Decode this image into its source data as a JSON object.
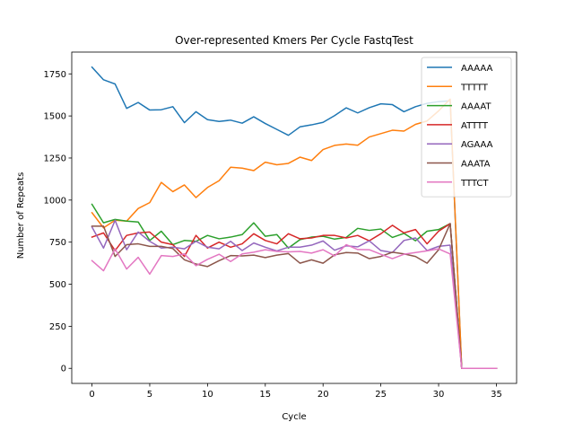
{
  "chart_data": {
    "type": "line",
    "title": "Over-represented Kmers Per Cycle FastqTest",
    "xlabel": "Cycle",
    "ylabel": "Number of Repeats",
    "xlim": [
      -1.75,
      36.75
    ],
    "ylim": [
      -89.5,
      1879.5
    ],
    "xticks": [
      0,
      5,
      10,
      15,
      20,
      25,
      30,
      35
    ],
    "yticks": [
      0,
      250,
      500,
      750,
      1000,
      1250,
      1500,
      1750
    ],
    "legend_position": "top-right",
    "grid": false,
    "x": [
      0,
      1,
      2,
      3,
      4,
      5,
      6,
      7,
      8,
      9,
      10,
      11,
      12,
      13,
      14,
      15,
      16,
      17,
      18,
      19,
      20,
      21,
      22,
      23,
      24,
      25,
      26,
      27,
      28,
      29,
      30,
      31,
      32,
      33,
      34,
      35
    ],
    "series": [
      {
        "name": "AAAAA",
        "color": "#1f77b4",
        "values": [
          1790,
          1715,
          1690,
          1545,
          1580,
          1535,
          1537,
          1555,
          1460,
          1525,
          1478,
          1467,
          1475,
          1457,
          1495,
          1455,
          1420,
          1385,
          1435,
          1447,
          1462,
          1502,
          1548,
          1518,
          1549,
          1572,
          1567,
          1525,
          1555,
          1575,
          1585,
          1590,
          0,
          0,
          0,
          0
        ]
      },
      {
        "name": "TTTTT",
        "color": "#ff7f0e",
        "values": [
          925,
          835,
          880,
          875,
          950,
          985,
          1105,
          1050,
          1090,
          1015,
          1075,
          1115,
          1195,
          1190,
          1175,
          1225,
          1210,
          1218,
          1255,
          1235,
          1300,
          1325,
          1333,
          1326,
          1375,
          1395,
          1415,
          1410,
          1450,
          1470,
          1530,
          1600,
          0,
          0,
          0,
          0
        ]
      },
      {
        "name": "AAAAT",
        "color": "#2ca02c",
        "values": [
          975,
          865,
          885,
          875,
          870,
          760,
          815,
          735,
          760,
          755,
          790,
          770,
          780,
          795,
          865,
          785,
          795,
          715,
          765,
          780,
          785,
          768,
          778,
          832,
          820,
          828,
          778,
          802,
          758,
          815,
          825,
          860,
          0,
          0,
          0,
          0
        ]
      },
      {
        "name": "ATTTT",
        "color": "#d62728",
        "values": [
          780,
          805,
          700,
          790,
          805,
          810,
          750,
          735,
          665,
          790,
          715,
          750,
          720,
          740,
          800,
          760,
          740,
          800,
          770,
          775,
          790,
          790,
          775,
          790,
          758,
          800,
          850,
          805,
          825,
          740,
          815,
          860,
          0,
          0,
          0,
          0
        ]
      },
      {
        "name": "AGAAA",
        "color": "#9467bd",
        "values": [
          840,
          715,
          880,
          705,
          810,
          755,
          715,
          720,
          710,
          755,
          720,
          710,
          755,
          700,
          745,
          720,
          698,
          720,
          720,
          732,
          757,
          702,
          728,
          722,
          758,
          700,
          688,
          760,
          775,
          700,
          725,
          732,
          0,
          0,
          0,
          0
        ]
      },
      {
        "name": "AAATA",
        "color": "#8c564b",
        "values": [
          845,
          845,
          665,
          735,
          740,
          725,
          725,
          712,
          645,
          620,
          605,
          640,
          670,
          668,
          673,
          658,
          673,
          682,
          625,
          645,
          625,
          675,
          688,
          685,
          652,
          665,
          690,
          680,
          665,
          625,
          705,
          860,
          0,
          0,
          0,
          0
        ]
      },
      {
        "name": "TTTCT",
        "color": "#e377c2",
        "values": [
          640,
          580,
          710,
          590,
          660,
          560,
          670,
          665,
          680,
          610,
          648,
          678,
          635,
          680,
          690,
          705,
          695,
          692,
          695,
          685,
          705,
          668,
          735,
          706,
          705,
          678,
          652,
          678,
          688,
          698,
          710,
          680,
          0,
          0,
          0,
          0
        ]
      }
    ]
  }
}
